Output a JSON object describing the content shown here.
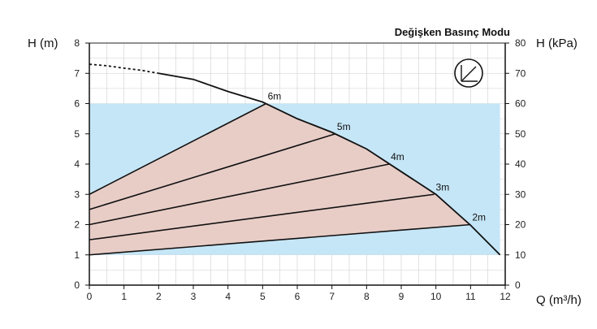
{
  "chart_data": {
    "type": "line",
    "title": "Değişken Basınç Modu",
    "ylabel_left": "H (m)",
    "ylabel_right": "H (kPa)",
    "xlabel": "Q (m³/h)",
    "xlim": [
      0,
      12
    ],
    "ylim": [
      0,
      8
    ],
    "ylim_right": [
      0,
      80
    ],
    "x_ticks": [
      0,
      1,
      2,
      3,
      4,
      5,
      6,
      7,
      8,
      9,
      10,
      11,
      12
    ],
    "y_ticks": [
      0,
      1,
      2,
      3,
      4,
      5,
      6,
      7,
      8
    ],
    "y_ticks_right": [
      0,
      10,
      20,
      30,
      40,
      50,
      60,
      70,
      80
    ],
    "grid": true,
    "max_curve": {
      "dashed_part": [
        [
          0,
          7.3
        ],
        [
          0.5,
          7.25
        ],
        [
          1,
          7.17
        ],
        [
          1.5,
          7.1
        ],
        [
          2,
          7.0
        ]
      ],
      "solid_part": [
        [
          2,
          7.0
        ],
        [
          3,
          6.8
        ],
        [
          4,
          6.4
        ],
        [
          5,
          6.05
        ],
        [
          6,
          5.5
        ],
        [
          7,
          5.05
        ],
        [
          8,
          4.5
        ],
        [
          9,
          3.75
        ],
        [
          10,
          3.0
        ],
        [
          11,
          1.98
        ],
        [
          11.85,
          1.0
        ]
      ]
    },
    "operating_band": {
      "y_from": 1,
      "y_to": 6
    },
    "series": [
      {
        "name": "6m",
        "points": [
          [
            0,
            3.0
          ],
          [
            5.1,
            6.0
          ]
        ]
      },
      {
        "name": "5m",
        "points": [
          [
            0,
            2.5
          ],
          [
            7.1,
            5.0
          ]
        ]
      },
      {
        "name": "4m",
        "points": [
          [
            0,
            2.0
          ],
          [
            8.65,
            4.0
          ]
        ]
      },
      {
        "name": "3m",
        "points": [
          [
            0,
            1.5
          ],
          [
            9.95,
            3.0
          ]
        ]
      },
      {
        "name": "2m",
        "points": [
          [
            0,
            1.0
          ],
          [
            11.0,
            2.0
          ]
        ]
      }
    ],
    "colors": {
      "band": "#c5e6f7",
      "area": "#e8cdc7",
      "curve": "#111111",
      "grid": "#cfcfcf"
    },
    "icon": "proportional-pressure-icon"
  }
}
